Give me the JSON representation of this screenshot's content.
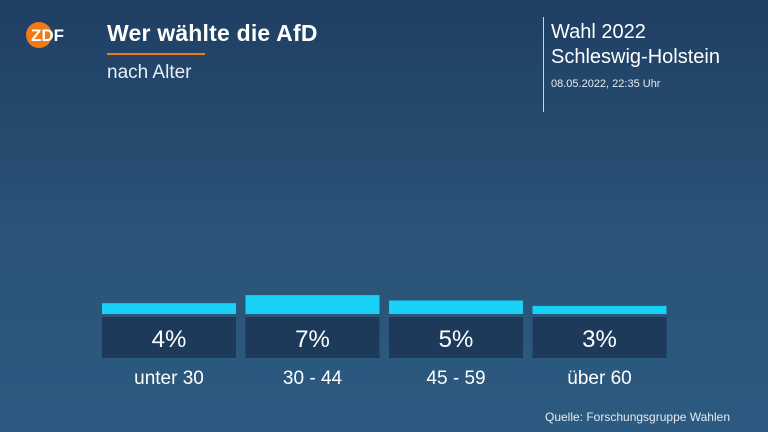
{
  "logo": {
    "text": "ZDF",
    "color": "#f07a14"
  },
  "header": {
    "title": "Wer wählte die AfD",
    "subtitle": "nach Alter",
    "accent_color": "#f07a14"
  },
  "election": {
    "title": "Wahl 2022",
    "region": "Schleswig-Holstein",
    "date": "08.05.2022, 22:35 Uhr"
  },
  "chart_data": {
    "type": "bar",
    "categories": [
      "unter 30",
      "30 - 44",
      "45 - 59",
      "über 60"
    ],
    "values": [
      4,
      7,
      5,
      3
    ],
    "value_labels": [
      "4%",
      "7%",
      "5%",
      "3%"
    ],
    "unit": "%",
    "bar_color": "#19d0f5",
    "label_box_color": "#1d3a5a",
    "grid": false,
    "legend": "none"
  },
  "source": "Quelle: Forschungsgruppe Wahlen"
}
